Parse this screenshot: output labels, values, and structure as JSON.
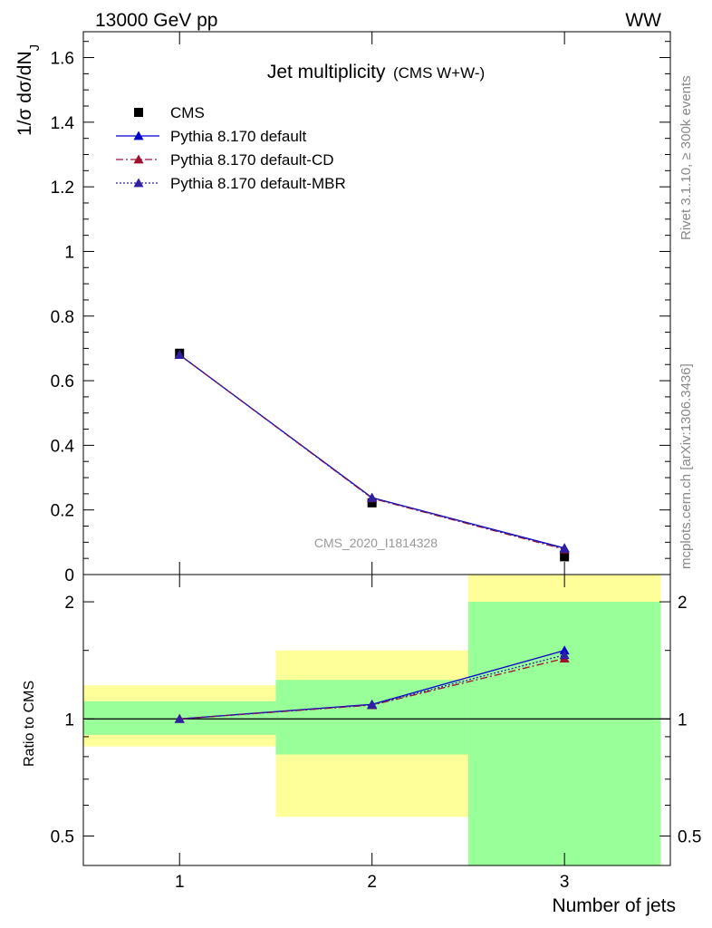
{
  "header": {
    "left_label": "13000 GeV pp",
    "right_label": "WW"
  },
  "side_labels": {
    "rivet": "Rivet 3.1.10, ≥ 300k events",
    "source": "mcplots.cern.ch [arXiv:1306.3436]"
  },
  "chart_data": [
    {
      "type": "line",
      "title": "Jet multiplicity",
      "subtitle": "(CMS W+W-)",
      "watermark": "CMS_2020_I1814328",
      "ylabel": "1/σ dσ/dN_J",
      "ylim": [
        0,
        1.68
      ],
      "xlim": [
        0.5,
        3.55
      ],
      "x_ticks": [
        1,
        2,
        3
      ],
      "y_ticks": [
        0,
        0.2,
        0.4,
        0.6,
        0.8,
        1,
        1.2,
        1.4,
        1.6
      ],
      "y_tick_labels": [
        "0",
        "0.2",
        "0.4",
        "0.6",
        "0.8",
        "1",
        "1.2",
        "1.4",
        "1.6"
      ],
      "legend_position": "top-left",
      "x": [
        1,
        2,
        3
      ],
      "series": [
        {
          "name": "CMS",
          "style": "data",
          "color": "#000000",
          "values": [
            0.685,
            0.222,
            0.055
          ]
        },
        {
          "name": "Pythia 8.170 default",
          "style": "solid",
          "marker": "triangle",
          "color": "#0000cc",
          "values": [
            0.68,
            0.238,
            0.082
          ]
        },
        {
          "name": "Pythia 8.170 default-CD",
          "style": "dashdot",
          "marker": "triangle",
          "color": "#a01030",
          "values": [
            0.68,
            0.236,
            0.078
          ]
        },
        {
          "name": "Pythia 8.170 default-MBR",
          "style": "dotted",
          "marker": "triangle",
          "color": "#3020a0",
          "values": [
            0.68,
            0.237,
            0.08
          ]
        }
      ]
    },
    {
      "type": "line",
      "ylabel": "Ratio to CMS",
      "xlabel": "Number of jets",
      "y_scale": "log",
      "ylim": [
        0.42,
        2.35
      ],
      "y_ticks": [
        0.5,
        1,
        2
      ],
      "y_tick_labels": [
        "0.5",
        "1",
        "2"
      ],
      "x_tick_labels": [
        "1",
        "2",
        "3"
      ],
      "x": [
        1,
        2,
        3
      ],
      "bins": [
        [
          0.5,
          1.5
        ],
        [
          1.5,
          2.5
        ],
        [
          2.5,
          3.5
        ]
      ],
      "band_inner": [
        [
          0.91,
          1.11
        ],
        [
          0.81,
          1.26
        ],
        [
          0.3,
          2.0
        ]
      ],
      "band_outer": [
        [
          0.85,
          1.22
        ],
        [
          0.56,
          1.5
        ],
        [
          0.3,
          2.35
        ]
      ],
      "band_colors": {
        "inner": "#99ff99",
        "outer": "#ffff99"
      },
      "series": [
        {
          "name": "Pythia 8.170 default",
          "style": "solid",
          "color": "#0000cc",
          "values": [
            1.0,
            1.09,
            1.5
          ]
        },
        {
          "name": "Pythia 8.170 default-CD",
          "style": "dashdot",
          "color": "#a01030",
          "values": [
            1.0,
            1.085,
            1.43
          ]
        },
        {
          "name": "Pythia 8.170 default-MBR",
          "style": "dotted",
          "color": "#3020a0",
          "values": [
            1.0,
            1.087,
            1.46
          ]
        }
      ]
    }
  ]
}
